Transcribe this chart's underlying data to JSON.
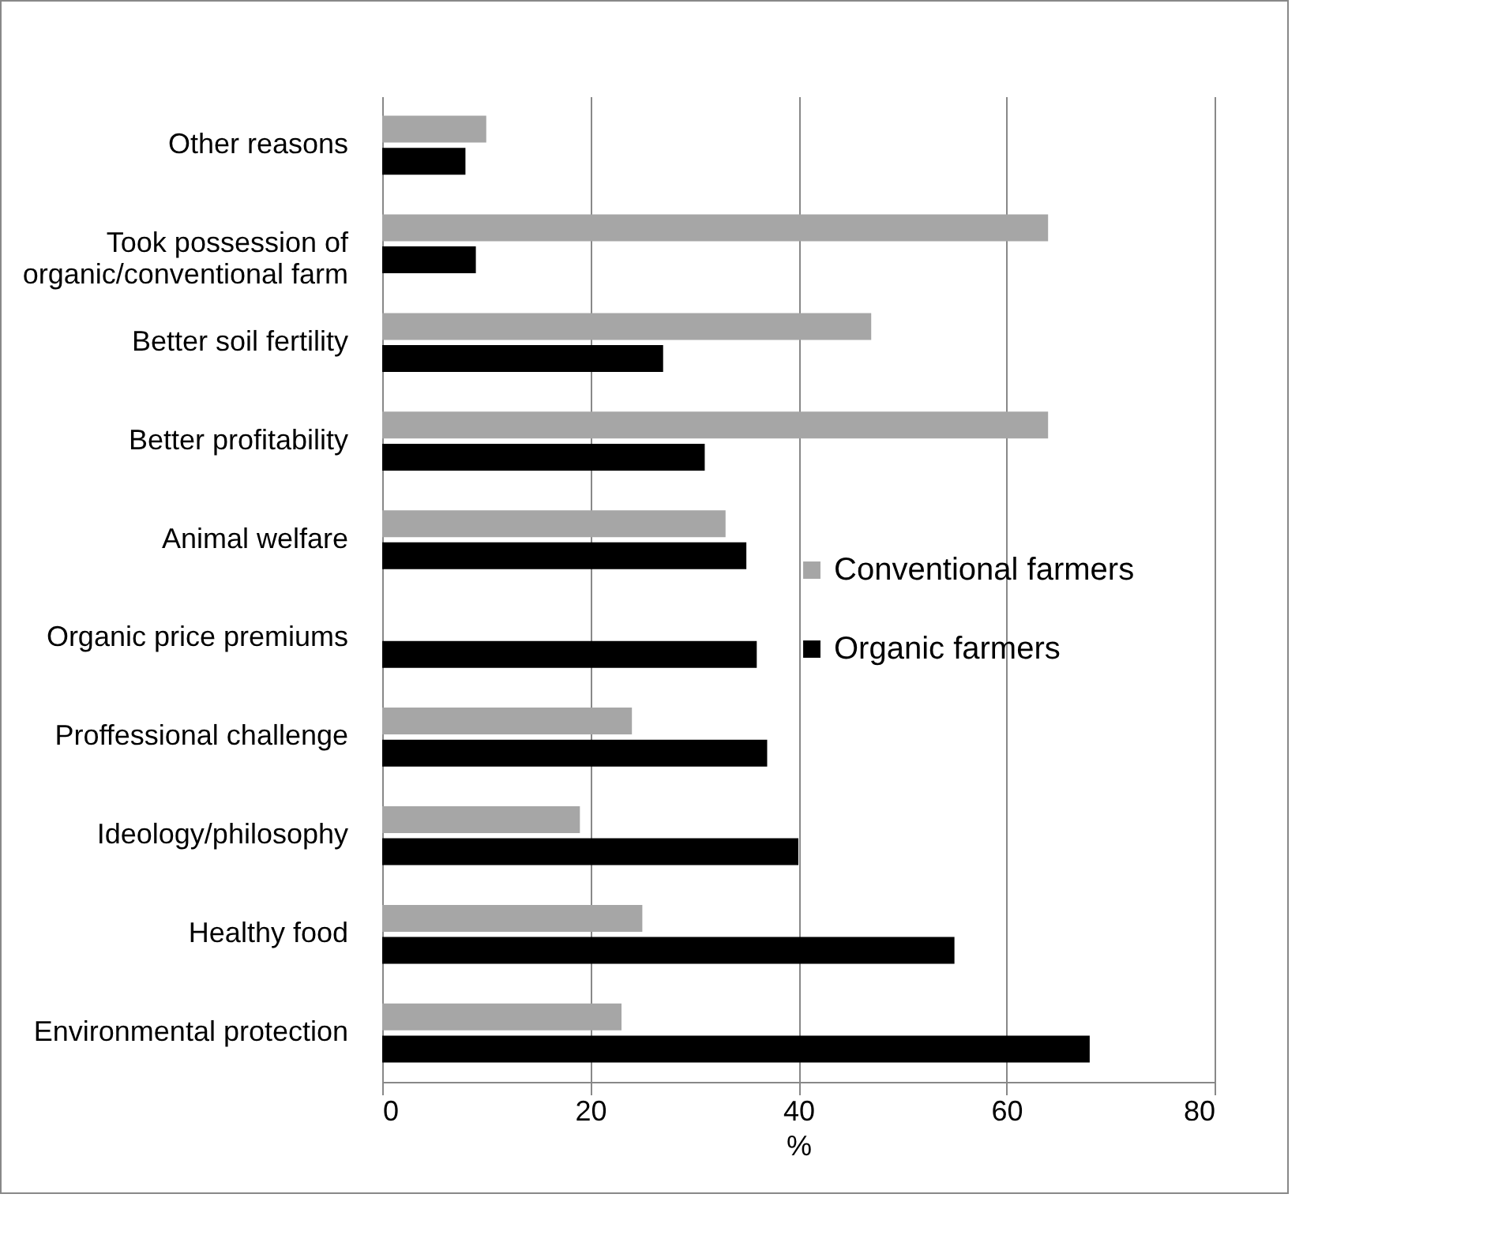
{
  "chart_data": {
    "type": "bar",
    "orientation": "horizontal",
    "xlabel": "%",
    "categories": [
      "Other reasons",
      "Took possession of organic/conventional farm",
      "Better soil fertility",
      "Better profitability",
      "Animal welfare",
      "Organic price premiums",
      "Proffessional challenge",
      "Ideology/philosophy",
      "Healthy food",
      "Environmental protection"
    ],
    "series": [
      {
        "name": "Conventional farmers",
        "color": "#a6a6a6",
        "values": [
          10,
          64,
          47,
          64,
          33,
          null,
          24,
          19,
          25,
          23
        ]
      },
      {
        "name": "Organic farmers",
        "color": "#000000",
        "values": [
          8,
          9,
          27,
          31,
          35,
          36,
          37,
          40,
          55,
          68
        ]
      }
    ],
    "xlim": [
      0,
      80
    ],
    "xticks": [
      0,
      20,
      40,
      60,
      80
    ],
    "grid": "x",
    "legend": "right"
  }
}
